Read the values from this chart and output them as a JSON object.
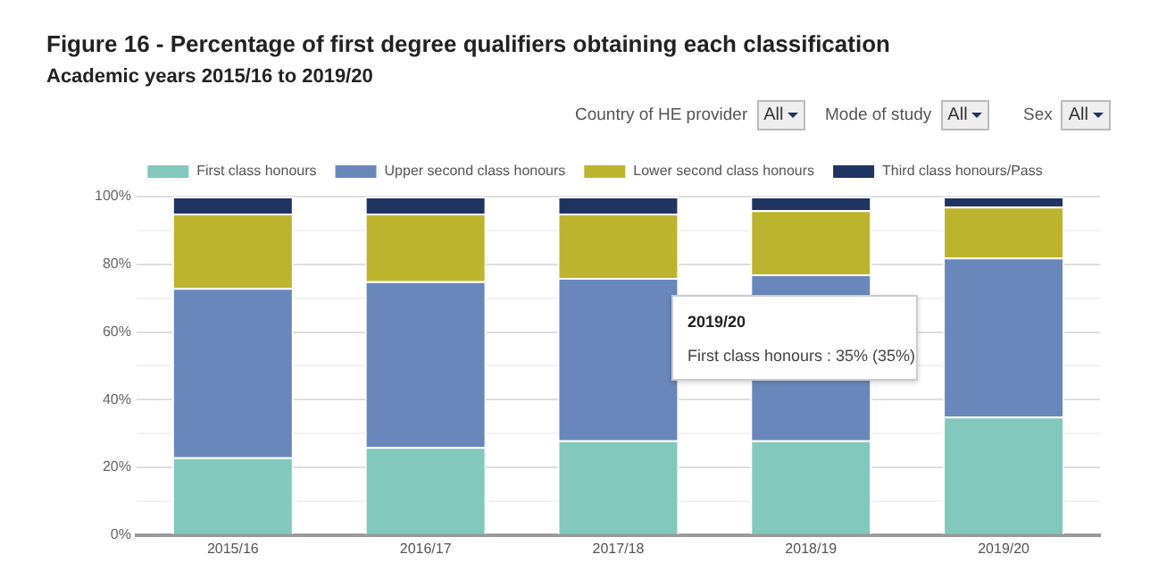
{
  "chart_data": {
    "type": "bar",
    "stacked": true,
    "title": "Figure 16 - Percentage of first degree qualifiers obtaining each classification",
    "subtitle": "Academic years 2015/16 to 2019/20",
    "categories": [
      "2015/16",
      "2016/17",
      "2017/18",
      "2018/19",
      "2019/20"
    ],
    "series": [
      {
        "name": "First class honours",
        "color": "#82c8bc",
        "values": [
          23,
          26,
          28,
          28,
          35
        ]
      },
      {
        "name": "Upper second class honours",
        "color": "#6a87bb",
        "values": [
          50,
          49,
          48,
          49,
          47
        ]
      },
      {
        "name": "Lower second class honours",
        "color": "#bdb42e",
        "values": [
          22,
          20,
          19,
          19,
          15
        ]
      },
      {
        "name": "Third class honours/Pass",
        "color": "#1f3461",
        "values": [
          5,
          5,
          5,
          4,
          3
        ]
      }
    ],
    "ylim": [
      0,
      100
    ],
    "yticks": [
      {
        "value": 0,
        "label": "0%"
      },
      {
        "value": 10,
        "label": null
      },
      {
        "value": 20,
        "label": "20%"
      },
      {
        "value": 30,
        "label": null
      },
      {
        "value": 40,
        "label": "40%"
      },
      {
        "value": 50,
        "label": null
      },
      {
        "value": 60,
        "label": "60%"
      },
      {
        "value": 70,
        "label": null
      },
      {
        "value": 80,
        "label": "80%"
      },
      {
        "value": 90,
        "label": null
      },
      {
        "value": 100,
        "label": "100%"
      }
    ],
    "grid": "y",
    "legend": "top",
    "annotations": [
      "Country of HE provider",
      "All",
      "Mode of study",
      "All",
      "Sex",
      "All",
      "2019/20",
      "First class honours : 35% (35%)"
    ]
  }
}
